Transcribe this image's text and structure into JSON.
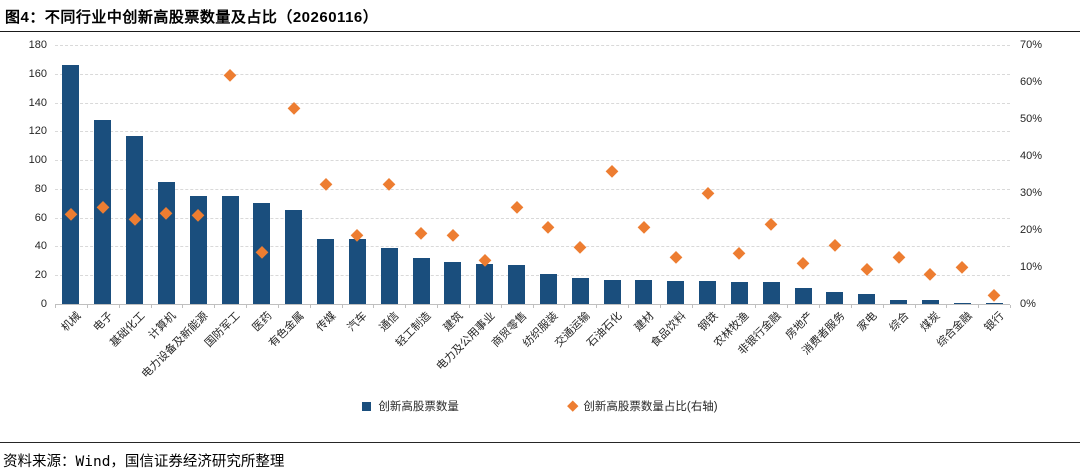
{
  "title": "图4：不同行业中创新高股票数量及占比（20260116）",
  "source_note": "资料来源：Wind，国信证券经济研究所整理",
  "colors": {
    "bar": "#1a4e7d",
    "marker": "#ed7d31",
    "gridline": "#d9d9d9",
    "axis_line": "#bfbfbf",
    "tick_text": "#262626"
  },
  "legend": {
    "bar_label": "创新高股票数量",
    "marker_label": "创新高股票数量占比(右轴)"
  },
  "chart_data": {
    "type": "bar",
    "title": "不同行业中创新高股票数量及占比（20260116）",
    "categories": [
      "机械",
      "电子",
      "基础化工",
      "计算机",
      "电力设备及新能源",
      "国防军工",
      "医药",
      "有色金属",
      "传媒",
      "汽车",
      "通信",
      "轻工制造",
      "建筑",
      "电力及公用事业",
      "商贸零售",
      "纺织服装",
      "交通运输",
      "石油石化",
      "建材",
      "食品饮料",
      "钢铁",
      "农林牧渔",
      "非银行金融",
      "房地产",
      "消费者服务",
      "家电",
      "综合",
      "煤炭",
      "综合金融",
      "银行"
    ],
    "series": [
      {
        "name": "创新高股票数量",
        "type": "bar",
        "axis": "left",
        "values": [
          166,
          128,
          117,
          85,
          75,
          75,
          70,
          65,
          45,
          45,
          39,
          32,
          29,
          28,
          27,
          21,
          18,
          17,
          17,
          16,
          16,
          15,
          15,
          11,
          8,
          7,
          3,
          3,
          1,
          1
        ]
      },
      {
        "name": "创新高股票数量占比(右轴)",
        "type": "scatter",
        "axis": "right",
        "values": [
          24.3,
          26.2,
          23.1,
          24.5,
          24.1,
          61.8,
          14.1,
          52.9,
          32.4,
          18.6,
          32.4,
          19.2,
          18.6,
          12,
          26.2,
          20.8,
          15.3,
          35.9,
          20.9,
          12.8,
          30.1,
          13.7,
          21.6,
          11,
          15.9,
          9.5,
          12.6,
          8,
          9.9,
          2.3
        ]
      }
    ],
    "left_axis": {
      "min": 0,
      "max": 180,
      "step": 20
    },
    "right_axis": {
      "min": 0,
      "max": 70,
      "step": 10,
      "suffix": "%"
    },
    "grid": "horizontal dashed",
    "legend_position": "bottom center"
  }
}
